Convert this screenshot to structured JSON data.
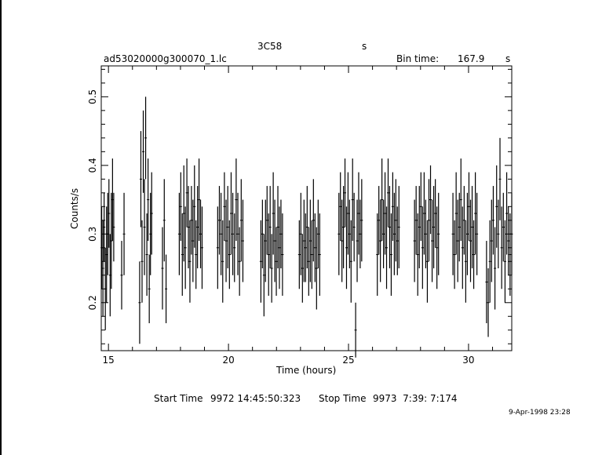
{
  "window": {
    "edge_color": "#000000"
  },
  "header": {
    "object": "3C58",
    "object_suffix": "s",
    "filename": "ad53020000g300070_1.lc",
    "bin_time_label": "Bin time:",
    "bin_time_value": "167.9",
    "bin_time_unit": "s"
  },
  "footer": {
    "start_label": "Start Time",
    "start_value": "9972 14:45:50:323",
    "stop_label": "Stop Time",
    "stop_value": "9973  7:39: 7:174",
    "timestamp": "9-Apr-1998 23:28"
  },
  "chart_data": {
    "type": "scatter",
    "xlabel": "Time (hours)",
    "ylabel": "Counts/s",
    "xlim": [
      14.7,
      31.8
    ],
    "ylim": [
      0.13,
      0.545
    ],
    "xticks": [
      15,
      20,
      25,
      30
    ],
    "xtick_labels": [
      "15",
      "20",
      "25",
      "30"
    ],
    "yticks": [
      0.2,
      0.3,
      0.4,
      0.5
    ],
    "ytick_labels": [
      "0.2",
      "0.3",
      "0.4",
      "0.5"
    ],
    "grid": false,
    "error_bars": true,
    "color": "#000000",
    "groups": [
      {
        "start": 14.72,
        "end": 15.22,
        "n": 11,
        "y": [
          0.28,
          0.25,
          0.31,
          0.22,
          0.27,
          0.3,
          0.33,
          0.24,
          0.29,
          0.35,
          0.31
        ],
        "e": [
          0.06,
          0.07,
          0.05,
          0.06,
          0.07,
          0.06,
          0.05,
          0.06,
          0.07,
          0.06,
          0.05
        ]
      },
      {
        "start": 15.55,
        "end": 15.65,
        "n": 2,
        "y": [
          0.24,
          0.3
        ],
        "e": [
          0.05,
          0.06
        ]
      },
      {
        "start": 16.3,
        "end": 16.8,
        "n": 11,
        "y": [
          0.2,
          0.38,
          0.26,
          0.42,
          0.31,
          0.44,
          0.27,
          0.35,
          0.22,
          0.3,
          0.33
        ],
        "e": [
          0.06,
          0.07,
          0.06,
          0.06,
          0.07,
          0.06,
          0.06,
          0.06,
          0.05,
          0.06,
          0.06
        ]
      },
      {
        "start": 17.25,
        "end": 17.4,
        "n": 3,
        "y": [
          0.25,
          0.32,
          0.22
        ],
        "e": [
          0.06,
          0.06,
          0.05
        ]
      },
      {
        "start": 17.95,
        "end": 18.9,
        "n": 16,
        "y": [
          0.3,
          0.34,
          0.27,
          0.33,
          0.28,
          0.36,
          0.31,
          0.26,
          0.32,
          0.29,
          0.34,
          0.27,
          0.31,
          0.35,
          0.3,
          0.28
        ],
        "e": [
          0.06,
          0.05,
          0.06,
          0.07,
          0.06,
          0.05,
          0.06,
          0.06,
          0.05,
          0.06,
          0.06,
          0.05,
          0.06,
          0.06,
          0.05,
          0.06
        ]
      },
      {
        "start": 19.55,
        "end": 20.6,
        "n": 16,
        "y": [
          0.28,
          0.32,
          0.3,
          0.26,
          0.34,
          0.29,
          0.31,
          0.27,
          0.33,
          0.3,
          0.28,
          0.35,
          0.3,
          0.26,
          0.32,
          0.29
        ],
        "e": [
          0.06,
          0.05,
          0.06,
          0.06,
          0.05,
          0.06,
          0.06,
          0.05,
          0.06,
          0.06,
          0.05,
          0.06,
          0.06,
          0.05,
          0.06,
          0.06
        ]
      },
      {
        "start": 21.35,
        "end": 22.25,
        "n": 15,
        "y": [
          0.26,
          0.3,
          0.24,
          0.29,
          0.32,
          0.27,
          0.31,
          0.25,
          0.33,
          0.29,
          0.26,
          0.31,
          0.28,
          0.3,
          0.27
        ],
        "e": [
          0.06,
          0.05,
          0.06,
          0.06,
          0.05,
          0.06,
          0.06,
          0.05,
          0.06,
          0.06,
          0.05,
          0.06,
          0.06,
          0.05,
          0.06
        ]
      },
      {
        "start": 22.95,
        "end": 23.8,
        "n": 14,
        "y": [
          0.27,
          0.3,
          0.25,
          0.29,
          0.28,
          0.31,
          0.26,
          0.29,
          0.27,
          0.32,
          0.28,
          0.25,
          0.3,
          0.27
        ],
        "e": [
          0.05,
          0.06,
          0.05,
          0.06,
          0.05,
          0.06,
          0.05,
          0.06,
          0.05,
          0.06,
          0.05,
          0.06,
          0.05,
          0.06
        ]
      },
      {
        "start": 24.6,
        "end": 25.55,
        "n": 16,
        "y": [
          0.3,
          0.34,
          0.29,
          0.31,
          0.36,
          0.28,
          0.33,
          0.3,
          0.26,
          0.35,
          0.31,
          0.16,
          0.29,
          0.33,
          0.3,
          0.32
        ],
        "e": [
          0.06,
          0.05,
          0.06,
          0.06,
          0.05,
          0.06,
          0.06,
          0.05,
          0.06,
          0.06,
          0.05,
          0.04,
          0.06,
          0.06,
          0.05,
          0.06
        ]
      },
      {
        "start": 26.2,
        "end": 27.1,
        "n": 15,
        "y": [
          0.27,
          0.32,
          0.29,
          0.35,
          0.3,
          0.33,
          0.28,
          0.36,
          0.31,
          0.27,
          0.34,
          0.3,
          0.32,
          0.29,
          0.31
        ],
        "e": [
          0.06,
          0.05,
          0.06,
          0.06,
          0.05,
          0.06,
          0.06,
          0.05,
          0.06,
          0.06,
          0.05,
          0.06,
          0.06,
          0.05,
          0.06
        ]
      },
      {
        "start": 27.75,
        "end": 28.75,
        "n": 16,
        "y": [
          0.29,
          0.32,
          0.27,
          0.31,
          0.34,
          0.28,
          0.33,
          0.3,
          0.26,
          0.32,
          0.35,
          0.29,
          0.31,
          0.33,
          0.28,
          0.3
        ],
        "e": [
          0.06,
          0.05,
          0.06,
          0.06,
          0.05,
          0.06,
          0.06,
          0.05,
          0.06,
          0.06,
          0.05,
          0.06,
          0.06,
          0.05,
          0.06,
          0.06
        ]
      },
      {
        "start": 29.35,
        "end": 30.35,
        "n": 16,
        "y": [
          0.3,
          0.27,
          0.33,
          0.29,
          0.31,
          0.35,
          0.28,
          0.32,
          0.26,
          0.3,
          0.34,
          0.29,
          0.31,
          0.27,
          0.33,
          0.3
        ],
        "e": [
          0.06,
          0.05,
          0.06,
          0.06,
          0.05,
          0.06,
          0.06,
          0.05,
          0.06,
          0.06,
          0.05,
          0.06,
          0.06,
          0.05,
          0.06,
          0.06
        ]
      },
      {
        "start": 30.75,
        "end": 31.8,
        "n": 16,
        "y": [
          0.23,
          0.2,
          0.26,
          0.29,
          0.32,
          0.25,
          0.34,
          0.3,
          0.38,
          0.28,
          0.31,
          0.26,
          0.33,
          0.29,
          0.27,
          0.3
        ],
        "e": [
          0.06,
          0.05,
          0.06,
          0.06,
          0.05,
          0.06,
          0.06,
          0.05,
          0.06,
          0.06,
          0.05,
          0.06,
          0.06,
          0.05,
          0.06,
          0.06
        ]
      }
    ]
  }
}
